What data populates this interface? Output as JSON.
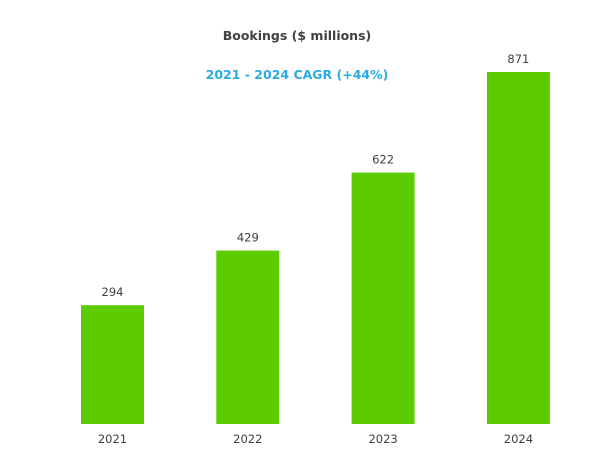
{
  "chart_data": {
    "type": "bar",
    "title": "Bookings ($ millions)",
    "subtitle": "2021 - 2024 CAGR (+44%)",
    "categories": [
      "2021",
      "2022",
      "2023",
      "2024"
    ],
    "values": [
      294,
      429,
      622,
      871
    ],
    "value_labels": [
      "294",
      "429",
      "622",
      "871"
    ],
    "xlabel": "",
    "ylabel": "",
    "ylim": [
      0,
      871
    ],
    "grid": false,
    "legend": "none"
  },
  "colors": {
    "bar": "#5ccb00",
    "subtitle": "#29abe2",
    "text": "#404040"
  }
}
